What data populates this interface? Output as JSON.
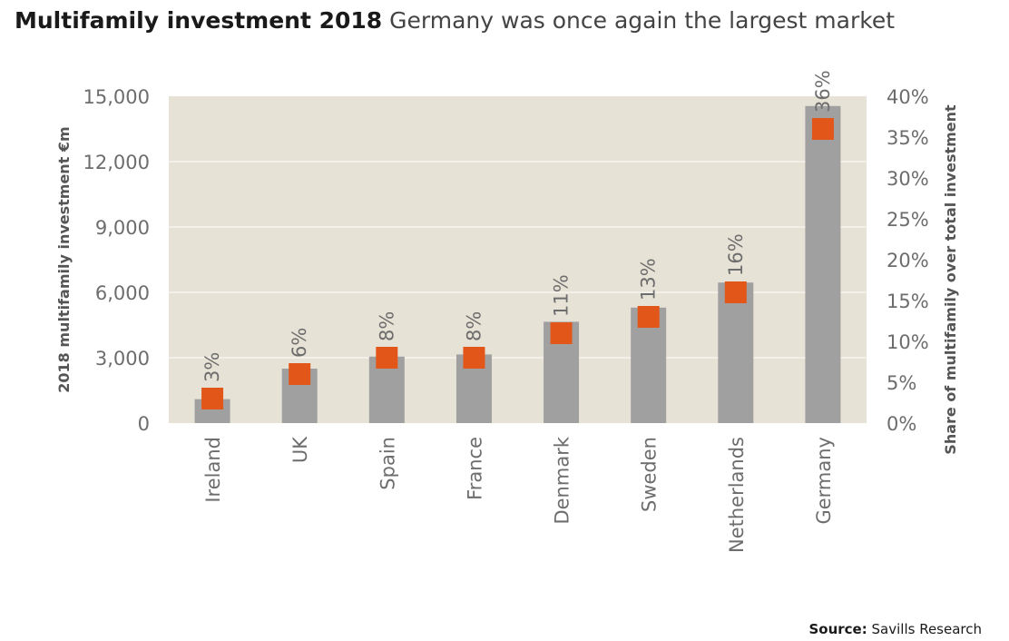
{
  "header": {
    "title_bold": "Multifamily investment 2018",
    "title_rest": "Germany was once again the largest market"
  },
  "source": {
    "label": "Source:",
    "text": "Savills Research"
  },
  "colors": {
    "plot_background": "#e7e2d6",
    "bar": "#a0a0a0",
    "marker": "#e2561a",
    "gridline": "#ffffff"
  },
  "chart_data": {
    "type": "bar",
    "categories": [
      "Ireland",
      "UK",
      "Spain",
      "France",
      "Denmark",
      "Sweden",
      "Netherlands",
      "Germany"
    ],
    "series": [
      {
        "name": "2018 multifamily investment €m",
        "type": "bar",
        "axis": "left",
        "values": [
          1100,
          2500,
          3050,
          3150,
          4650,
          5300,
          6450,
          14550
        ]
      },
      {
        "name": "Share of multifamily over total investment",
        "type": "scatter",
        "axis": "right",
        "values": [
          3,
          6,
          8,
          8,
          11,
          13,
          16,
          36
        ],
        "labels": [
          "3%",
          "6%",
          "8%",
          "8%",
          "11%",
          "13%",
          "16%",
          "36%"
        ]
      }
    ],
    "ylabel": "2018 multifamily investment €m",
    "ylabel_right": "Share of multifamily over total investment",
    "ylim": [
      0,
      15000
    ],
    "yticks": [
      "0",
      "3,000",
      "6,000",
      "9,000",
      "12,000",
      "15,000"
    ],
    "ylim_right": [
      0,
      40
    ],
    "yticks_right": [
      "0%",
      "5%",
      "10%",
      "15%",
      "20%",
      "25%",
      "30%",
      "35%",
      "40%"
    ],
    "grid": true,
    "legend": "none"
  }
}
